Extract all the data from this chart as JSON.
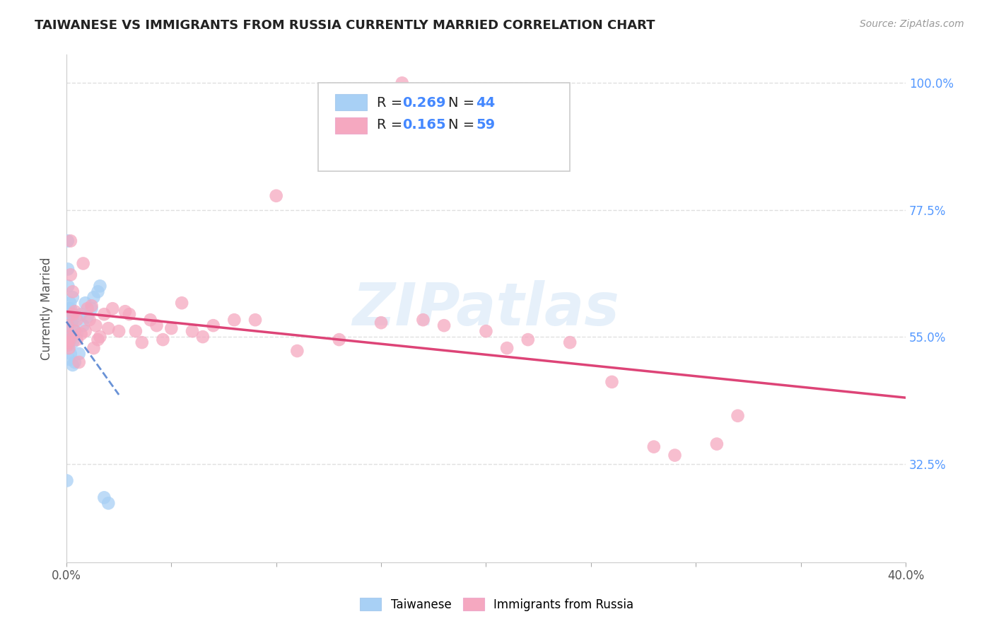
{
  "title": "TAIWANESE VS IMMIGRANTS FROM RUSSIA CURRENTLY MARRIED CORRELATION CHART",
  "source": "Source: ZipAtlas.com",
  "ylabel": "Currently Married",
  "ytick_labels": [
    "100.0%",
    "77.5%",
    "55.0%",
    "32.5%"
  ],
  "ytick_positions": [
    1.0,
    0.775,
    0.55,
    0.325
  ],
  "color_taiwanese": "#a8d0f5",
  "color_russia": "#f5a8c0",
  "trendline_blue_color": "#4477cc",
  "trendline_pink_color": "#dd4477",
  "watermark": "ZIPatlas",
  "xlim": [
    0.0,
    0.4
  ],
  "ylim": [
    0.15,
    1.05
  ],
  "background_color": "#ffffff",
  "grid_color": "#e0e0e0",
  "tw_x": [
    0.0002,
    0.0003,
    0.0004,
    0.0005,
    0.0006,
    0.0007,
    0.0008,
    0.0009,
    0.001,
    0.001,
    0.001,
    0.0011,
    0.0012,
    0.0013,
    0.0014,
    0.0015,
    0.0016,
    0.0017,
    0.0018,
    0.002,
    0.002,
    0.002,
    0.002,
    0.0022,
    0.0025,
    0.003,
    0.003,
    0.003,
    0.003,
    0.0032,
    0.004,
    0.004,
    0.005,
    0.006,
    0.007,
    0.008,
    0.009,
    0.01,
    0.012,
    0.013,
    0.015,
    0.016,
    0.018,
    0.02
  ],
  "tw_y": [
    0.295,
    0.54,
    0.55,
    0.56,
    0.72,
    0.67,
    0.64,
    0.58,
    0.535,
    0.54,
    0.545,
    0.6,
    0.55,
    0.565,
    0.51,
    0.57,
    0.59,
    0.56,
    0.61,
    0.52,
    0.545,
    0.555,
    0.6,
    0.555,
    0.575,
    0.5,
    0.54,
    0.58,
    0.62,
    0.555,
    0.505,
    0.56,
    0.555,
    0.52,
    0.59,
    0.57,
    0.61,
    0.585,
    0.6,
    0.62,
    0.63,
    0.64,
    0.265,
    0.255
  ],
  "ru_x": [
    0.0003,
    0.0005,
    0.0008,
    0.001,
    0.0012,
    0.0015,
    0.002,
    0.002,
    0.003,
    0.003,
    0.004,
    0.004,
    0.005,
    0.005,
    0.006,
    0.007,
    0.008,
    0.009,
    0.01,
    0.011,
    0.012,
    0.013,
    0.014,
    0.015,
    0.016,
    0.018,
    0.02,
    0.022,
    0.025,
    0.028,
    0.03,
    0.033,
    0.036,
    0.04,
    0.043,
    0.046,
    0.05,
    0.055,
    0.06,
    0.065,
    0.07,
    0.08,
    0.09,
    0.1,
    0.11,
    0.13,
    0.15,
    0.16,
    0.17,
    0.18,
    0.2,
    0.21,
    0.22,
    0.24,
    0.26,
    0.28,
    0.29,
    0.31,
    0.32
  ],
  "ru_y": [
    0.535,
    0.57,
    0.54,
    0.55,
    0.53,
    0.545,
    0.72,
    0.66,
    0.59,
    0.63,
    0.56,
    0.595,
    0.545,
    0.58,
    0.505,
    0.555,
    0.68,
    0.56,
    0.6,
    0.58,
    0.605,
    0.53,
    0.57,
    0.545,
    0.55,
    0.59,
    0.565,
    0.6,
    0.56,
    0.595,
    0.59,
    0.56,
    0.54,
    0.58,
    0.57,
    0.545,
    0.565,
    0.61,
    0.56,
    0.55,
    0.57,
    0.58,
    0.58,
    0.8,
    0.525,
    0.545,
    0.575,
    1.0,
    0.58,
    0.57,
    0.56,
    0.53,
    0.545,
    0.54,
    0.47,
    0.355,
    0.34,
    0.36,
    0.41
  ]
}
